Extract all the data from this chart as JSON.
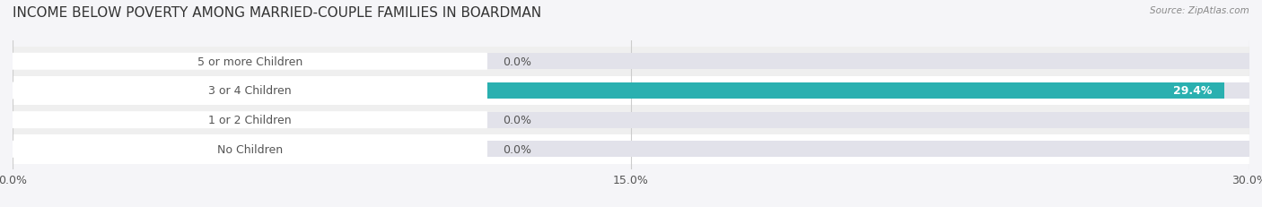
{
  "title": "INCOME BELOW POVERTY AMONG MARRIED-COUPLE FAMILIES IN BOARDMAN",
  "source": "Source: ZipAtlas.com",
  "categories": [
    "No Children",
    "1 or 2 Children",
    "3 or 4 Children",
    "5 or more Children"
  ],
  "values": [
    0.0,
    0.0,
    29.4,
    0.0
  ],
  "bar_colors": [
    "#a8c4e0",
    "#c9a8c8",
    "#2ab0b0",
    "#b0b8e8"
  ],
  "bar_bg_color": "#e2e2ea",
  "xlim": [
    0,
    30.0
  ],
  "xticks": [
    0.0,
    15.0,
    30.0
  ],
  "xtick_labels": [
    "0.0%",
    "15.0%",
    "30.0%"
  ],
  "label_color": "#555555",
  "title_color": "#333333",
  "title_fontsize": 11,
  "bar_height": 0.55,
  "label_fontsize": 9,
  "value_fontsize": 9,
  "background_color": "#f5f5f8",
  "row_colors": [
    "#ffffff",
    "#efefef",
    "#ffffff",
    "#efefef"
  ]
}
